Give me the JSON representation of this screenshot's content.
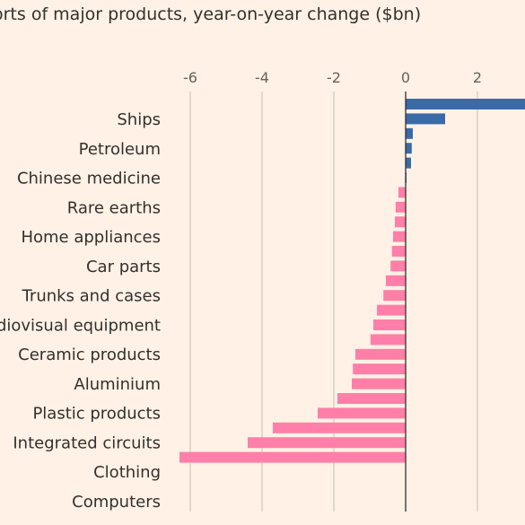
{
  "title": "orts of major products, year-on-year change ($bn)",
  "chart_data": {
    "type": "bar",
    "orientation": "horizontal",
    "title": "orts of major products, year-on-year change ($bn)",
    "xlabel": "",
    "ylabel": "",
    "xlim": [
      -6.3,
      3.4
    ],
    "xticks": [
      {
        "value": -6,
        "label": "-6"
      },
      {
        "value": -4,
        "label": "-4"
      },
      {
        "value": -2,
        "label": "-2"
      },
      {
        "value": 0,
        "label": "0"
      },
      {
        "value": 2,
        "label": "2"
      }
    ],
    "grid": true,
    "positive_color": "#3a6aa8",
    "negative_color": "#ff7fa8",
    "gridline_color": "#c9c0b7",
    "zero_line_color": "#33302e",
    "labeled_categories": [
      "Ships",
      "Petroleum",
      "Chinese medicine",
      "Rare earths",
      "Home appliances",
      "Car parts",
      "Trunks and cases",
      "diovisual equipment",
      "Ceramic products",
      "Aluminium",
      "Plastic products",
      "Integrated circuits",
      "Clothing",
      "Computers"
    ],
    "values": [
      3.4,
      1.1,
      0.2,
      0.17,
      0.15,
      0.02,
      -0.2,
      -0.28,
      -0.3,
      -0.35,
      -0.38,
      -0.42,
      -0.55,
      -0.62,
      -0.8,
      -0.9,
      -0.98,
      -1.4,
      -1.47,
      -1.5,
      -1.9,
      -2.45,
      -3.7,
      -4.4,
      -6.3
    ]
  }
}
